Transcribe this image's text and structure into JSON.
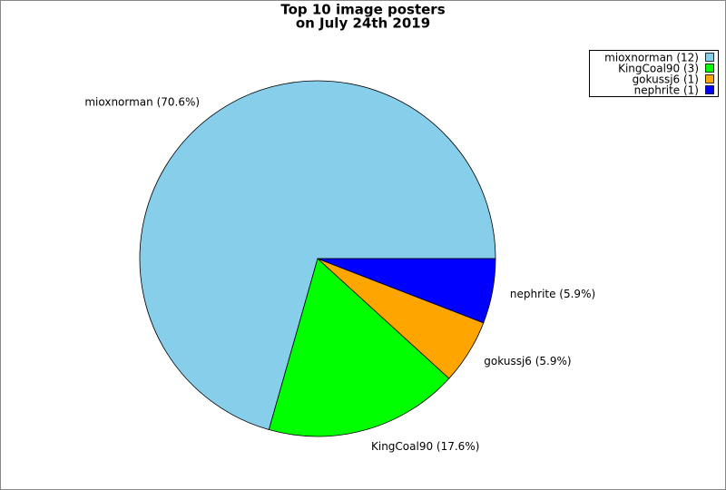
{
  "chart_data": {
    "type": "pie",
    "title": [
      "Top 10 image posters",
      "on July 24th 2019"
    ],
    "legend": [
      "mioxnorman (12)",
      "KingCoal90 (3)",
      "gokussj6 (1)",
      "nephrite (1)"
    ],
    "values": [
      12,
      3,
      1,
      1
    ],
    "value_labels": [
      "mioxnorman (70.6%)",
      "KingCoal90 (17.6%)",
      "gokussj6 (5.9%)",
      "nephrite (5.9%)"
    ],
    "colors": [
      "#87ceeb",
      "#00ff00",
      "#ffa500",
      "#0000ff"
    ],
    "legend_position": "upper right"
  }
}
